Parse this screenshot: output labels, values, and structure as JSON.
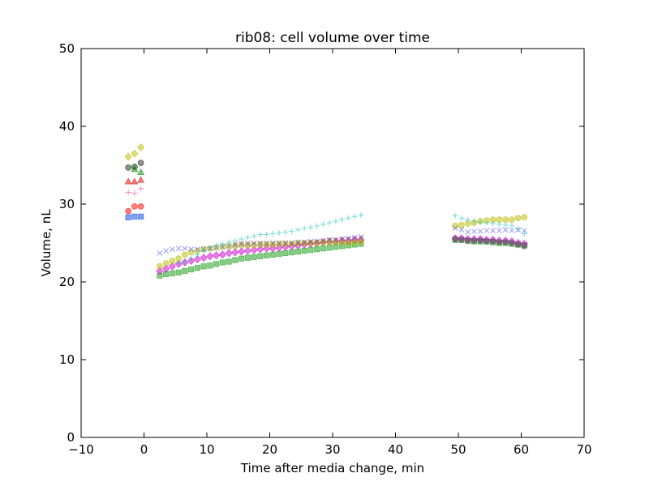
{
  "chart_data": {
    "type": "scatter",
    "title": "rib08: cell volume over time",
    "xlabel": "Time after media change, min",
    "ylabel": "Volume, nL",
    "xlim": [
      -10,
      70
    ],
    "ylim": [
      0,
      50
    ],
    "xticks": [
      -10,
      0,
      10,
      20,
      30,
      40,
      50,
      60,
      70
    ],
    "yticks": [
      0,
      10,
      20,
      30,
      40,
      50
    ],
    "xtick_labels": [
      "−10",
      "0",
      "10",
      "20",
      "30",
      "40",
      "50",
      "60",
      "70"
    ],
    "ytick_labels": [
      "0",
      "10",
      "20",
      "30",
      "40",
      "50"
    ],
    "grid": false,
    "series": [
      {
        "marker": "square",
        "color": "#0044dd",
        "x": [
          -2.5,
          -1.5,
          -0.5
        ],
        "y": [
          28.3,
          28.4,
          28.4
        ]
      },
      {
        "marker": "circle",
        "color": "#ff0000",
        "x": [
          -2.5,
          -1.5,
          -0.5
        ],
        "y": [
          29.1,
          29.7,
          29.7
        ]
      },
      {
        "marker": "plus",
        "color": "#dd3399",
        "x": [
          -2.5,
          -1.5,
          -0.5
        ],
        "y": [
          31.5,
          31.4,
          32.0
        ]
      },
      {
        "marker": "triangle",
        "color": "#dd0000",
        "x": [
          -2.5,
          -1.5,
          -0.5
        ],
        "y": [
          32.9,
          32.9,
          33.1
        ]
      },
      {
        "marker": "triangle",
        "color": "#008800",
        "x": [
          -1.5,
          -0.5
        ],
        "y": [
          34.5,
          34.1
        ]
      },
      {
        "marker": "circle",
        "color": "#003300",
        "x": [
          -2.5,
          -1.5
        ],
        "y": [
          34.7,
          34.8
        ]
      },
      {
        "marker": "circle",
        "color": "#222222",
        "x": [
          -0.5
        ],
        "y": [
          35.3
        ]
      },
      {
        "marker": "diamond",
        "color": "#bbbb00",
        "x": [
          -2.5,
          -1.5,
          -0.5
        ],
        "y": [
          36.1,
          36.5,
          37.3
        ]
      },
      {
        "marker": "square",
        "color": "#119911",
        "x": [
          2.5,
          3.5,
          4.5,
          5.5,
          6.5,
          7.5,
          8.5,
          9.5,
          10.5,
          11.5,
          12.5,
          13.5,
          14.5,
          15.5,
          16.5,
          17.5,
          18.5,
          19.5,
          20.5,
          21.5,
          22.5,
          23.5,
          24.5,
          25.5,
          26.5,
          27.5,
          28.5,
          29.5,
          30.5,
          31.5,
          32.5,
          33.5,
          34.5,
          49.5,
          50.5,
          51.5,
          52.5,
          53.5,
          54.5,
          55.5,
          56.5,
          57.5,
          58.5,
          59.5,
          60.5
        ],
        "y": [
          20.8,
          21.0,
          21.1,
          21.2,
          21.4,
          21.6,
          21.8,
          22.0,
          22.1,
          22.3,
          22.5,
          22.6,
          22.8,
          23.0,
          23.1,
          23.2,
          23.3,
          23.4,
          23.5,
          23.6,
          23.7,
          23.8,
          23.9,
          24.0,
          24.1,
          24.2,
          24.3,
          24.4,
          24.5,
          24.6,
          24.7,
          24.8,
          24.9,
          25.4,
          25.4,
          25.3,
          25.2,
          25.2,
          25.2,
          25.1,
          25.0,
          25.0,
          24.9,
          24.8,
          24.7
        ]
      },
      {
        "marker": "diamond",
        "color": "#cc00cc",
        "x": [
          2.5,
          3.5,
          4.5,
          5.5,
          6.5,
          7.5,
          8.5,
          9.5,
          10.5,
          11.5,
          12.5,
          13.5,
          14.5,
          15.5,
          16.5,
          17.5,
          18.5,
          19.5,
          20.5,
          21.5,
          22.5,
          23.5,
          24.5,
          25.5,
          26.5,
          27.5,
          28.5,
          29.5,
          30.5,
          31.5,
          32.5,
          33.5,
          34.5,
          49.5,
          50.5,
          51.5,
          52.5,
          53.5,
          54.5,
          55.5,
          56.5,
          57.5,
          58.5,
          59.5,
          60.5
        ],
        "y": [
          21.4,
          21.7,
          22.0,
          22.3,
          22.5,
          22.7,
          22.9,
          23.1,
          23.3,
          23.4,
          23.5,
          23.7,
          23.8,
          23.9,
          24.0,
          24.1,
          24.2,
          24.3,
          24.3,
          24.4,
          24.5,
          24.6,
          24.7,
          24.8,
          24.9,
          25.0,
          25.1,
          25.2,
          25.2,
          25.3,
          25.3,
          25.4,
          25.4,
          25.6,
          25.6,
          25.5,
          25.5,
          25.5,
          25.4,
          25.4,
          25.3,
          25.3,
          25.2,
          25.0,
          24.9
        ]
      },
      {
        "marker": "circle",
        "color": "#bbbb00",
        "x": [
          2.5,
          3.5,
          4.5,
          5.5,
          6.5,
          7.5,
          8.5,
          9.5,
          10.5,
          11.5,
          12.5,
          13.5,
          14.5,
          15.5,
          16.5,
          17.5,
          18.5,
          19.5,
          20.5,
          21.5,
          22.5,
          23.5,
          24.5,
          25.5,
          26.5,
          27.5,
          28.5,
          29.5,
          30.5,
          31.5,
          32.5,
          33.5,
          34.5,
          49.5,
          50.5,
          51.5,
          52.5,
          53.5,
          54.5,
          55.5,
          56.5,
          57.5,
          58.5,
          59.5,
          60.5
        ],
        "y": [
          22.0,
          22.4,
          22.7,
          23.0,
          23.5,
          23.8,
          24.0,
          24.2,
          24.3,
          24.4,
          24.5,
          24.6,
          24.6,
          24.7,
          24.7,
          24.7,
          24.8,
          24.8,
          24.8,
          24.9,
          24.9,
          24.9,
          25.0,
          25.0,
          25.0,
          25.0,
          25.1,
          25.1,
          25.1,
          25.1,
          25.1,
          25.1,
          25.2,
          27.2,
          27.3,
          27.5,
          27.6,
          27.8,
          27.9,
          28.0,
          28.0,
          28.0,
          28.0,
          28.2,
          28.3
        ]
      },
      {
        "marker": "cross",
        "color": "#4444ee",
        "x": [
          2.5,
          3.5,
          4.5,
          5.5,
          6.5,
          7.5,
          8.5,
          9.5,
          10.5,
          11.5,
          12.5,
          13.5,
          14.5,
          15.5,
          16.5,
          17.5,
          18.5,
          19.5,
          20.5,
          21.5,
          22.5,
          23.5,
          24.5,
          25.5,
          26.5,
          27.5,
          28.5,
          29.5,
          30.5,
          31.5,
          32.5,
          33.5,
          34.5,
          49.5,
          50.5,
          51.5,
          52.5,
          53.5,
          54.5,
          55.5,
          56.5,
          57.5,
          58.5,
          59.5,
          60.5
        ],
        "y": [
          23.7,
          24.0,
          24.2,
          24.3,
          24.3,
          24.2,
          24.2,
          24.2,
          24.3,
          24.4,
          24.5,
          24.6,
          24.7,
          24.8,
          24.8,
          24.9,
          24.9,
          24.9,
          25.0,
          25.0,
          25.0,
          25.0,
          25.1,
          25.1,
          25.2,
          25.2,
          25.3,
          25.4,
          25.4,
          25.5,
          25.6,
          25.7,
          25.8,
          26.9,
          26.7,
          26.4,
          26.5,
          26.5,
          26.6,
          26.6,
          26.6,
          26.7,
          26.6,
          26.7,
          26.6
        ]
      },
      {
        "marker": "plus",
        "color": "#00bbbb",
        "x": [
          5.5,
          6.5,
          7.5,
          8.5,
          9.5,
          10.5,
          11.5,
          12.5,
          13.5,
          14.5,
          15.5,
          16.5,
          17.5,
          18.5,
          19.5,
          20.5,
          21.5,
          22.5,
          23.5,
          24.5,
          25.5,
          26.5,
          27.5,
          28.5,
          29.5,
          30.5,
          31.5,
          32.5,
          33.5,
          34.5,
          49.5,
          50.5,
          51.5,
          52.5,
          53.5,
          54.5,
          55.5,
          56.5,
          57.5,
          58.5,
          59.5,
          60.5
        ],
        "y": [
          22.4,
          22.6,
          23.0,
          23.5,
          24.0,
          24.4,
          24.7,
          24.9,
          25.1,
          25.3,
          25.5,
          25.7,
          25.9,
          26.1,
          26.1,
          26.2,
          26.3,
          26.4,
          26.5,
          26.7,
          26.9,
          27.0,
          27.2,
          27.4,
          27.6,
          27.8,
          28.0,
          28.2,
          28.4,
          28.6,
          28.5,
          28.2,
          28.0,
          27.8,
          27.7,
          27.6,
          27.5,
          27.4,
          27.3,
          27.2,
          26.8,
          26.2
        ]
      },
      {
        "marker": "cross",
        "color": "#996633",
        "x": [
          14.5,
          15.5,
          16.5,
          17.5,
          18.5,
          19.5,
          20.5,
          21.5,
          22.5,
          23.5,
          24.5,
          25.5,
          26.5,
          27.5,
          28.5,
          29.5,
          30.5,
          31.5,
          32.5,
          33.5,
          34.5
        ],
        "y": [
          24.9,
          25.0,
          25.0,
          25.0,
          25.0,
          25.0,
          24.9,
          24.9,
          24.9,
          24.9,
          25.0,
          25.0,
          25.1,
          25.1,
          25.2,
          25.3,
          25.3,
          25.4,
          25.5,
          25.5,
          25.6
        ]
      },
      {
        "marker": "circle",
        "color": "#555555",
        "x": [
          49.5,
          50.5,
          51.5,
          52.5,
          53.5,
          54.5,
          55.5,
          56.5,
          57.5,
          58.5,
          59.5,
          60.5
        ],
        "y": [
          25.5,
          25.4,
          25.3,
          25.3,
          25.3,
          25.2,
          25.2,
          25.1,
          25.1,
          25.0,
          24.8,
          24.6
        ]
      }
    ]
  }
}
